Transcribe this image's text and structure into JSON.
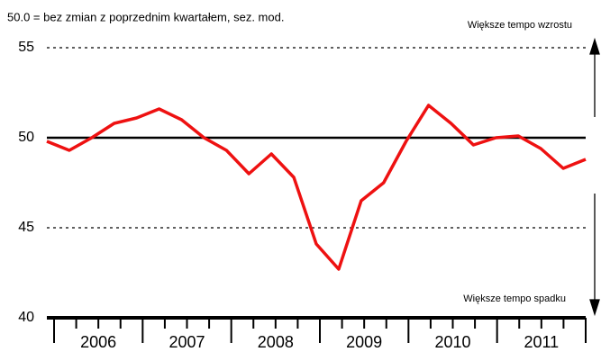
{
  "chart_data": {
    "type": "line",
    "annotations": [
      "50.0 = bez zmian z poprzednim kwartałem, sez. mod.",
      "Większe tempo wzrostu",
      "Większe tempo spadku"
    ],
    "categories": [
      null,
      null,
      null,
      null,
      null,
      null,
      null,
      null,
      null,
      null,
      null,
      null,
      null,
      null,
      null,
      null,
      null,
      null,
      null,
      null,
      null,
      null,
      null,
      null,
      null
    ],
    "year_labels": [
      "2006",
      "2007",
      "2008",
      "2009",
      "2010",
      "2011"
    ],
    "series": [
      {
        "color": "#ee1111",
        "values": [
          49.8,
          49.3,
          50.0,
          50.8,
          51.1,
          51.6,
          51.0,
          50.0,
          49.3,
          48.0,
          49.1,
          47.8,
          44.1,
          42.7,
          46.5,
          47.5,
          49.8,
          51.8,
          50.8,
          49.6,
          50.0,
          50.1,
          49.4,
          48.3,
          48.8
        ]
      }
    ],
    "ylim": [
      40,
      55
    ],
    "yticks": [
      40,
      45,
      50,
      55
    ],
    "grid": true,
    "reference_line": 50
  }
}
